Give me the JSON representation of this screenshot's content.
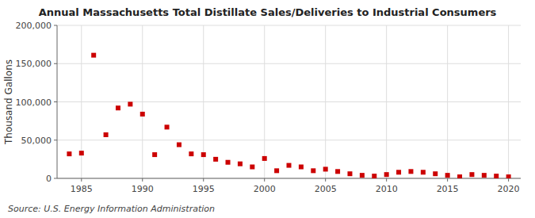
{
  "chart_data": {
    "type": "scatter",
    "title": "Annual Massachusetts Total Distillate Sales/Deliveries to Industrial Consumers",
    "y_label": "Thousand Gallons",
    "annotations": [
      "Source: U.S. Energy Information Administration"
    ],
    "x": [
      1984,
      1985,
      1986,
      1987,
      1988,
      1989,
      1990,
      1991,
      1992,
      1993,
      1994,
      1995,
      1996,
      1997,
      1998,
      1999,
      2000,
      2001,
      2002,
      2003,
      2004,
      2005,
      2006,
      2007,
      2008,
      2009,
      2010,
      2011,
      2012,
      2013,
      2014,
      2015,
      2016,
      2017,
      2018,
      2019,
      2020
    ],
    "values": [
      32000,
      33000,
      161000,
      57000,
      92000,
      97000,
      84000,
      31000,
      67000,
      44000,
      32000,
      31000,
      25000,
      21000,
      19000,
      15000,
      26000,
      10000,
      17000,
      15000,
      10000,
      12000,
      9000,
      6000,
      4000,
      3000,
      5000,
      8000,
      9000,
      8000,
      6000,
      4000,
      2000,
      5000,
      4000,
      3000,
      2000
    ],
    "color": "#cc0000",
    "marker": "square",
    "xlim": [
      1983,
      2021
    ],
    "ylim": [
      0,
      200000
    ],
    "xticks": [
      1985,
      1990,
      1995,
      2000,
      2005,
      2010,
      2015,
      2020
    ],
    "yticks": [
      0,
      {
        "value": 50000,
        "label": "50,000"
      },
      {
        "value": 100000,
        "label": "100,000"
      },
      {
        "value": 150000,
        "label": "150,000"
      },
      {
        "value": 200000,
        "label": "200,000"
      }
    ],
    "grid": true
  }
}
